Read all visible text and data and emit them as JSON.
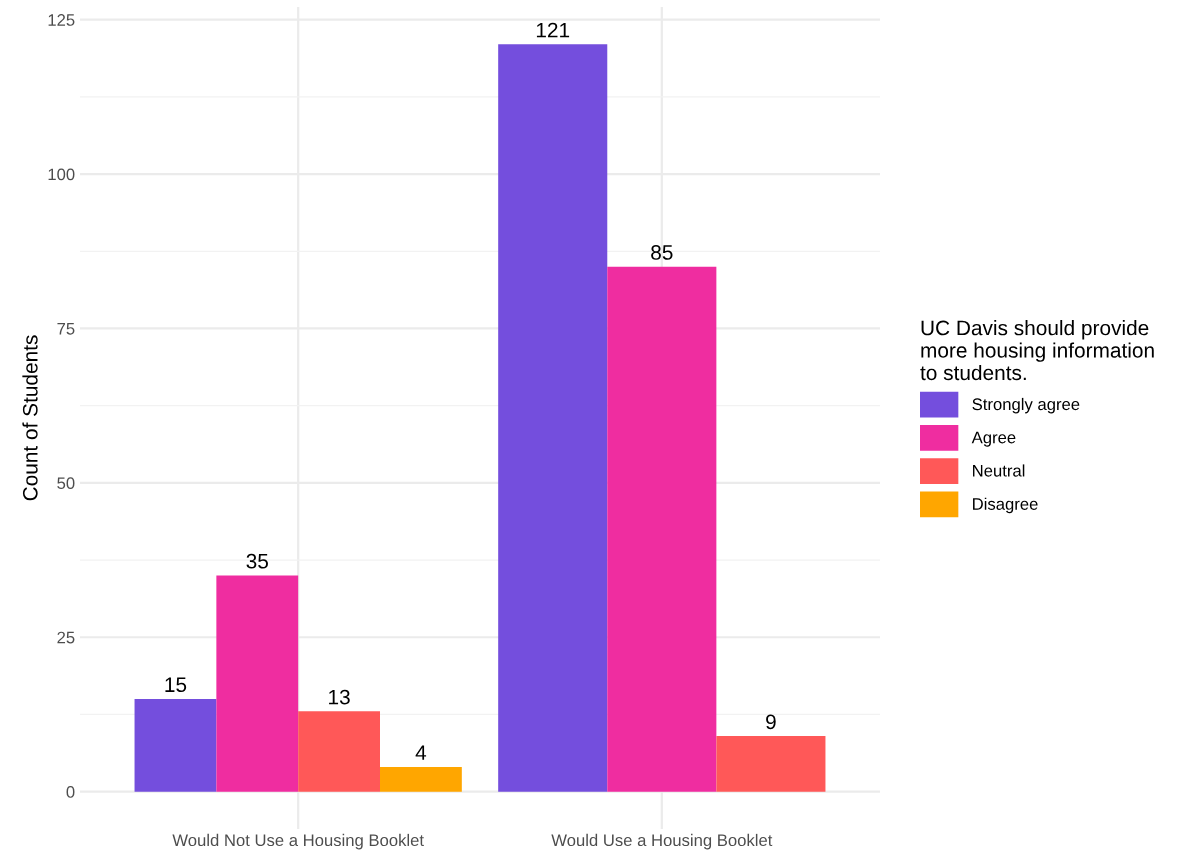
{
  "chart_data": {
    "type": "bar",
    "ylabel": "Count of Students",
    "legend_title": "UC Davis should provide\nmore housing information\nto students.",
    "categories": [
      "Would Not Use a Housing Booklet",
      "Would Use a Housing Booklet"
    ],
    "series": [
      {
        "name": "Strongly agree",
        "color": "#744edd",
        "values": [
          15,
          121
        ]
      },
      {
        "name": "Agree",
        "color": "#ef2da0",
        "values": [
          35,
          85
        ]
      },
      {
        "name": "Neutral",
        "color": "#ff5858",
        "values": [
          13,
          9
        ]
      },
      {
        "name": "Disagree",
        "color": "#ffa600",
        "values": [
          4,
          null
        ]
      }
    ],
    "ylim": [
      -6.05,
      127.05
    ],
    "yticks": [
      0,
      25,
      50,
      75,
      100,
      125
    ],
    "grid": true,
    "legend": "right",
    "data_labels": true
  }
}
